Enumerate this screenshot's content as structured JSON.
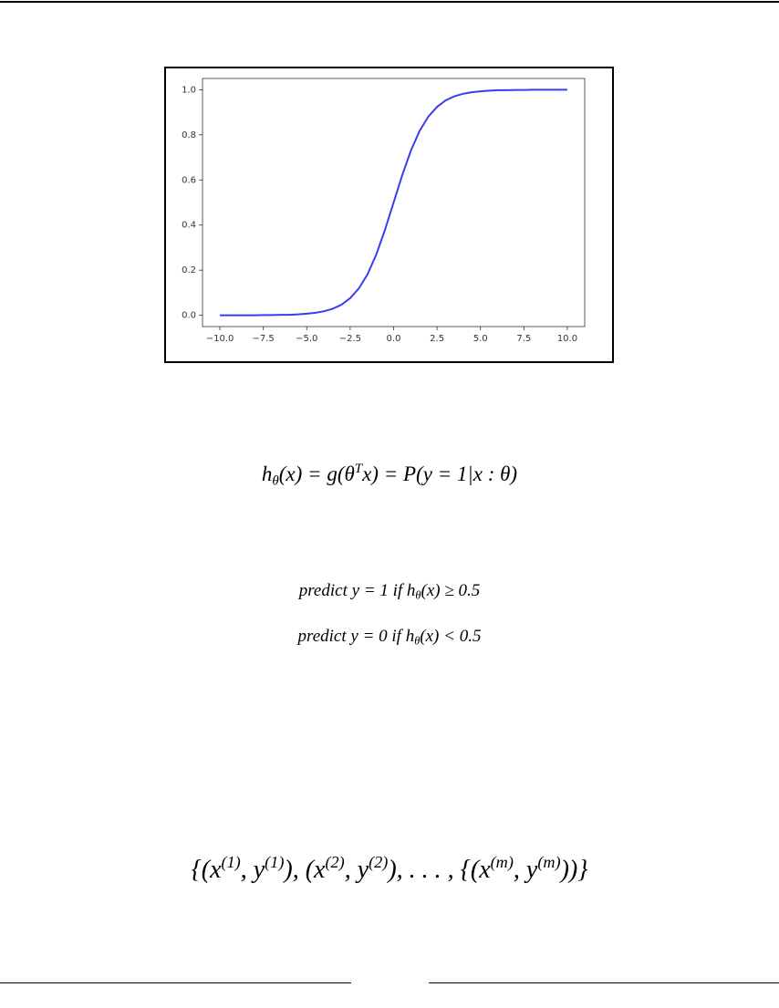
{
  "chart_data": {
    "type": "line",
    "x": [
      -10,
      -9.5,
      -9,
      -8.5,
      -8,
      -7.5,
      -7,
      -6.5,
      -6,
      -5.5,
      -5,
      -4.5,
      -4,
      -3.5,
      -3,
      -2.5,
      -2,
      -1.5,
      -1,
      -0.5,
      0,
      0.5,
      1,
      1.5,
      2,
      2.5,
      3,
      3.5,
      4,
      4.5,
      5,
      5.5,
      6,
      6.5,
      7,
      7.5,
      8,
      8.5,
      9,
      9.5,
      10
    ],
    "values": [
      0,
      0,
      0,
      0,
      0,
      0.001,
      0.001,
      0.002,
      0.002,
      0.004,
      0.007,
      0.011,
      0.018,
      0.029,
      0.047,
      0.076,
      0.119,
      0.182,
      0.269,
      0.378,
      0.5,
      0.622,
      0.731,
      0.818,
      0.881,
      0.924,
      0.953,
      0.971,
      0.982,
      0.989,
      0.993,
      0.996,
      0.998,
      0.998,
      0.999,
      0.999,
      1,
      1,
      1,
      1,
      1
    ],
    "color": "#3b3bf5",
    "xlim": [
      -11,
      11
    ],
    "ylim": [
      -0.05,
      1.05
    ],
    "xticks": [
      {
        "value": -10,
        "label": "−10.0"
      },
      {
        "value": -7.5,
        "label": "−7.5"
      },
      {
        "value": -5,
        "label": "−5.0"
      },
      {
        "value": -2.5,
        "label": "−2.5"
      },
      {
        "value": 0,
        "label": "0.0"
      },
      2.5,
      {
        "value": 5,
        "label": "5.0"
      },
      7.5,
      {
        "value": 10,
        "label": "10.0"
      }
    ],
    "yticks": [
      {
        "value": 0,
        "label": "0.0"
      },
      0.2,
      0.4,
      0.6,
      0.8,
      {
        "value": 1,
        "label": "1.0"
      }
    ]
  },
  "equations": [
    {
      "parts": [
        "h",
        "θ",
        "(x) = g(θ",
        "T",
        "x) = P(y = 1|x : θ)"
      ]
    },
    {
      "parts": [
        "predict y = 1 if h",
        "θ",
        "(x) ≥ 0.5"
      ]
    },
    {
      "parts": [
        "predict y = 0 if h",
        "θ",
        "(x) < 0.5"
      ]
    },
    {
      "parts": [
        "{(x",
        "(1)",
        ", y",
        "(1)",
        "), (x",
        "(2)",
        ", y",
        "(2)",
        "), . . . , {(x",
        "(m)",
        ", y",
        "(m)",
        "))}"
      ]
    }
  ]
}
